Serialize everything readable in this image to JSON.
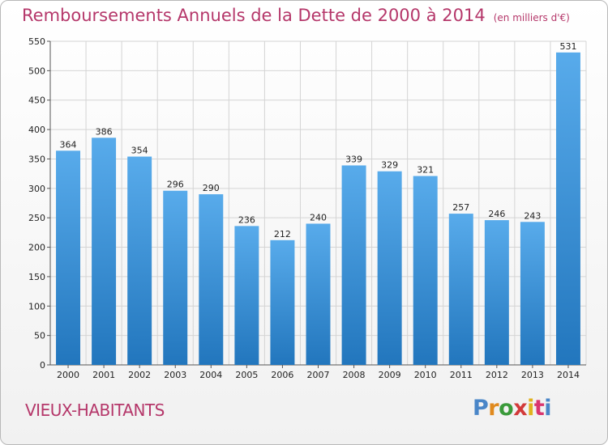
{
  "title": "Remboursements Annuels de la Dette de 2000 à 2014",
  "subtitle": "(en milliers d'€)",
  "commune": "VIEUX-HABITANTS",
  "logo": {
    "text": "Proxiti",
    "letter_colors": [
      "#4a86c8",
      "#e08a1e",
      "#3a9a3a",
      "#d23a3a",
      "#e0b21e",
      "#d9356f",
      "#4a86c8"
    ]
  },
  "colors": {
    "bar_top": "#58abeb",
    "bar_bottom": "#2276bd",
    "title": "#b5376a"
  },
  "chart_data": {
    "type": "bar",
    "title": "Remboursements Annuels de la Dette de 2000 à 2014",
    "subtitle": "(en milliers d'€)",
    "categories": [
      "2000",
      "2001",
      "2002",
      "2003",
      "2004",
      "2005",
      "2006",
      "2007",
      "2008",
      "2009",
      "2010",
      "2011",
      "2012",
      "2013",
      "2014"
    ],
    "values": [
      364,
      386,
      354,
      296,
      290,
      236,
      212,
      240,
      339,
      329,
      321,
      257,
      246,
      243,
      531
    ],
    "ylim": [
      0,
      550
    ],
    "yticks": [
      0,
      50,
      100,
      150,
      200,
      250,
      300,
      350,
      400,
      450,
      500,
      550
    ],
    "grid": true,
    "data_labels": true
  }
}
